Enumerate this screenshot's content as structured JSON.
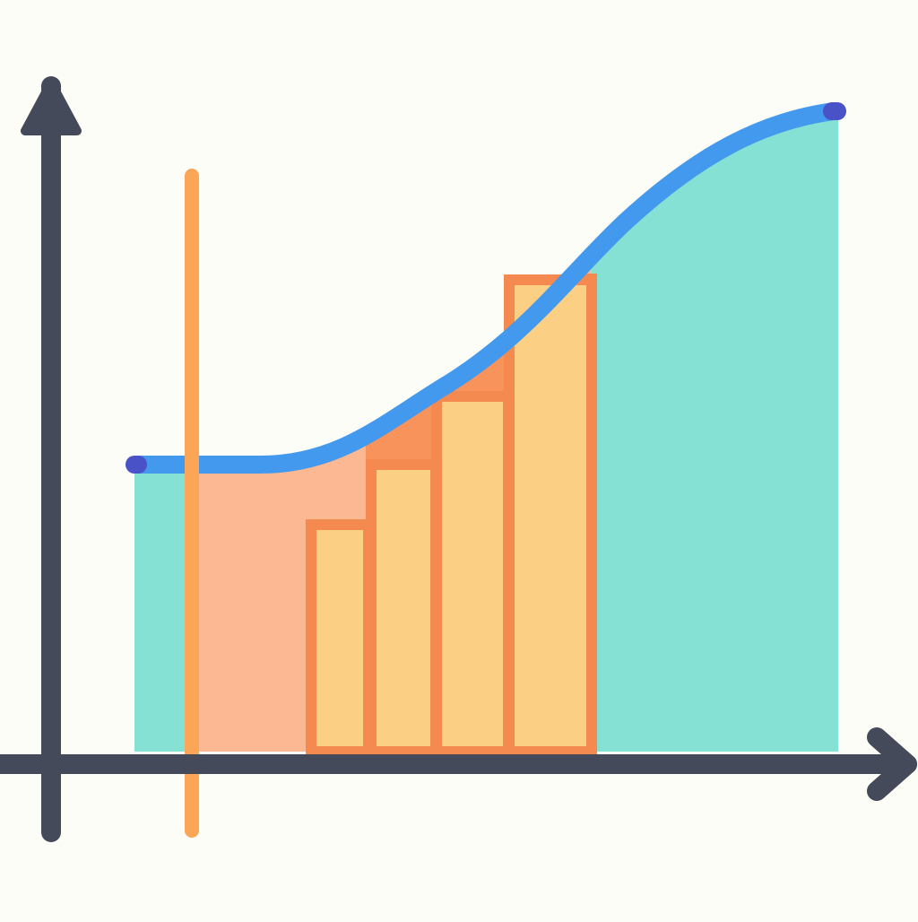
{
  "colors": {
    "background": "#fdfdf7",
    "axis": "#454a5a",
    "curve": "#4399ee",
    "curve_end_cap": "#4a52c8",
    "area_under_curve": "#84e1d4",
    "shaded_interval": "#fbb892",
    "rectangle_fill": "#fcd084",
    "rectangle_outline": "#f58a50",
    "upper_gap_fill": "#f8935b",
    "vertical_marker": "#fba656"
  },
  "icons": {
    "x_axis_arrow": "arrow-right-icon",
    "y_axis_arrow": "arrow-up-icon"
  },
  "rectangle_count": 4
}
